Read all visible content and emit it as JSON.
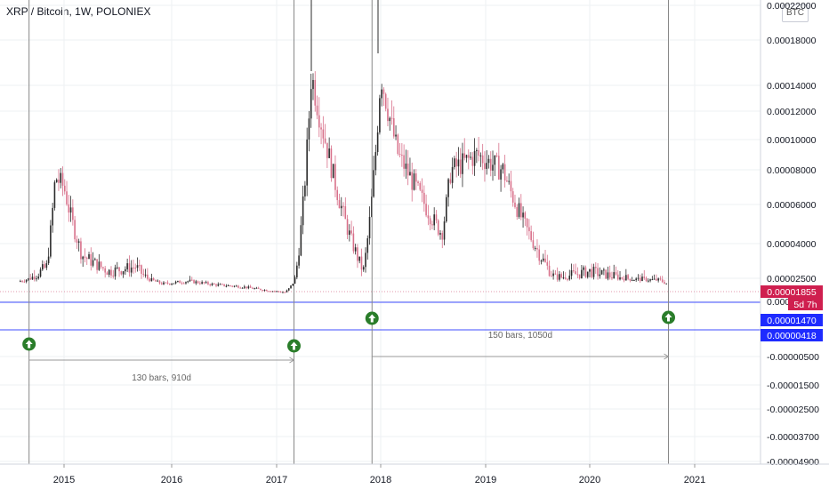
{
  "title": "XRP / Bitcoin, 1W, POLONIEX",
  "currency_badge": "BTC",
  "colors": {
    "up": "#2b2b2b",
    "down": "#d8708a",
    "price_tag": "#cf1f4f",
    "level_tag": "#1e2bff",
    "level_line": "#3f4cff",
    "arrow": "#2a7d2a"
  },
  "chart_data": {
    "type": "candlestick",
    "title": "XRP / Bitcoin, 1W, POLONIEX",
    "x_axis": {
      "ticks": [
        "2015",
        "2016",
        "2017",
        "2018",
        "2019",
        "2020",
        "2021"
      ]
    },
    "y_axis": {
      "scale": "log (signed)",
      "position": "right",
      "ticks": [
        "0.00022000",
        "0.00018000",
        "0.00014000",
        "0.00012000",
        "0.00010000",
        "0.00008000",
        "0.00006000",
        "0.00004000",
        "0.00002500",
        "0.0000",
        "-0.00000500",
        "-0.00001500",
        "-0.00002500",
        "-0.00003700",
        "-0.00004900"
      ]
    },
    "price_tags": [
      {
        "label": "0.00001855",
        "kind": "last_price"
      },
      {
        "label": "5d 7h",
        "kind": "countdown"
      },
      {
        "label": "0.00001470",
        "kind": "level"
      },
      {
        "label": "0.00000418",
        "kind": "level"
      }
    ],
    "horizontal_levels": [
      1.47e-05,
      4.18e-06
    ],
    "vertical_markers": [
      "2014-09",
      "2017-03",
      "2017-12",
      "2020-10"
    ],
    "bar_count_annotations": [
      {
        "label": "130 bars, 910d",
        "from": "2014-09",
        "to": "2017-03"
      },
      {
        "label": "150 bars, 1050d",
        "from": "2017-12",
        "to": "2020-10"
      }
    ],
    "up_arrow_markers": [
      "2014-09",
      "2017-03",
      "2017-12",
      "2020-10"
    ],
    "approx_weekly_closes": [
      {
        "date": "2014-08",
        "close": 2.2e-05
      },
      {
        "date": "2014-11",
        "close": 3e-05
      },
      {
        "date": "2014-12",
        "close": 7.6e-05
      },
      {
        "date": "2015-01",
        "close": 7e-05
      },
      {
        "date": "2015-03",
        "close": 3.5e-05
      },
      {
        "date": "2015-06",
        "close": 2.8e-05
      },
      {
        "date": "2015-09",
        "close": 3e-05
      },
      {
        "date": "2015-12",
        "close": 1.9e-05
      },
      {
        "date": "2016-03",
        "close": 2.2e-05
      },
      {
        "date": "2016-06",
        "close": 1.8e-05
      },
      {
        "date": "2016-09",
        "close": 1.6e-05
      },
      {
        "date": "2017-02",
        "close": 9.8e-06
      },
      {
        "date": "2017-03",
        "close": 2.2e-05
      },
      {
        "date": "2017-05",
        "close": 0.00015
      },
      {
        "date": "2017-07",
        "close": 9e-05
      },
      {
        "date": "2017-09",
        "close": 5e-05
      },
      {
        "date": "2017-11",
        "close": 2.8e-05
      },
      {
        "date": "2018-01",
        "close": 0.00015
      },
      {
        "date": "2018-03",
        "close": 9e-05
      },
      {
        "date": "2018-05",
        "close": 7e-05
      },
      {
        "date": "2018-08",
        "close": 4.5e-05
      },
      {
        "date": "2018-09",
        "close": 8e-05
      },
      {
        "date": "2018-12",
        "close": 9e-05
      },
      {
        "date": "2019-03",
        "close": 8e-05
      },
      {
        "date": "2019-06",
        "close": 4.5e-05
      },
      {
        "date": "2019-09",
        "close": 2.5e-05
      },
      {
        "date": "2020-01",
        "close": 2.8e-05
      },
      {
        "date": "2020-06",
        "close": 2.4e-05
      },
      {
        "date": "2020-09",
        "close": 2.3e-05
      },
      {
        "date": "2020-10",
        "close": 1.855e-05
      }
    ]
  }
}
